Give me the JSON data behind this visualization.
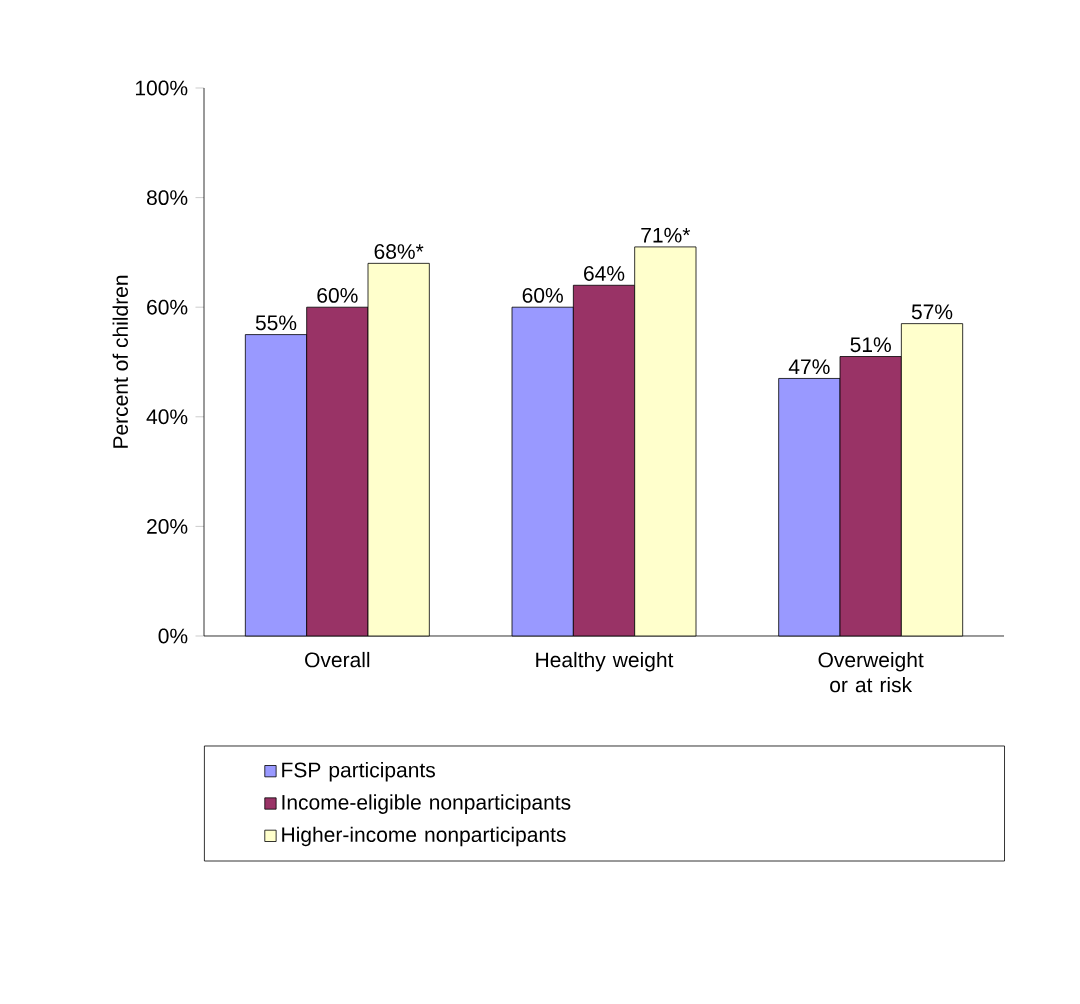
{
  "chart_data": {
    "type": "bar",
    "ylabel": "Percent of children",
    "categories": [
      "Overall",
      "Healthy weight",
      "Overweight or at risk"
    ],
    "series": [
      {
        "name": "FSP participants",
        "color": "#9999ff",
        "values": [
          55,
          60,
          47
        ],
        "value_labels": [
          "55%",
          "60%",
          "47%"
        ]
      },
      {
        "name": "Income-eligible nonparticipants",
        "color": "#993366",
        "values": [
          60,
          64,
          51
        ],
        "value_labels": [
          "60%",
          "64%",
          "51%"
        ]
      },
      {
        "name": "Higher-income nonparticipants",
        "color": "#ffffcc",
        "values": [
          68,
          71,
          57
        ],
        "value_labels": [
          "68%*",
          "71%*",
          "57%"
        ]
      }
    ],
    "ylim": [
      0,
      100
    ],
    "yticks": [
      {
        "value": 0,
        "label": "0%"
      },
      {
        "value": 20,
        "label": "20%"
      },
      {
        "value": 40,
        "label": "40%"
      },
      {
        "value": 60,
        "label": "60%"
      },
      {
        "value": 80,
        "label": "80%"
      },
      {
        "value": 100,
        "label": "100%"
      }
    ],
    "legend": "bottom",
    "grid": false
  }
}
